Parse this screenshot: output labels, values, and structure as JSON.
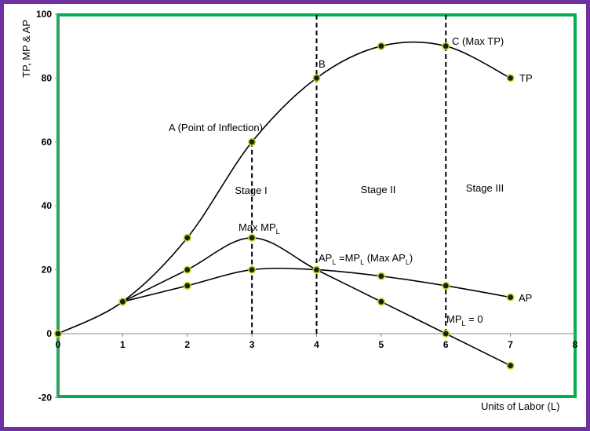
{
  "chart_data": {
    "type": "line",
    "title": "",
    "xlabel": "Units of Labor (L)",
    "ylabel": "TP, MP & AP",
    "xlim": [
      0,
      8
    ],
    "ylim": [
      -20,
      100
    ],
    "x_ticks": [
      "0",
      "1",
      "2",
      "3",
      "4",
      "5",
      "6",
      "7",
      "8"
    ],
    "y_ticks": [
      "-20",
      "0",
      "20",
      "40",
      "60",
      "80",
      "100"
    ],
    "x_tick_values": [
      0,
      1,
      2,
      3,
      4,
      5,
      6,
      7,
      8
    ],
    "y_tick_values": [
      -20,
      0,
      20,
      40,
      60,
      80,
      100
    ],
    "grid": false,
    "series": [
      {
        "name": "TP",
        "x": [
          0,
          1,
          2,
          3,
          4,
          5,
          6,
          7
        ],
        "values": [
          0,
          10,
          30,
          60,
          80,
          90,
          90,
          80
        ]
      },
      {
        "name": "AP",
        "x": [
          1,
          2,
          3,
          4,
          5,
          6,
          7
        ],
        "values": [
          10,
          15,
          20,
          20,
          18,
          15,
          11.4
        ]
      },
      {
        "name": "",
        "x": [
          1,
          2,
          3,
          4,
          5,
          6,
          7
        ],
        "values": [
          10,
          20,
          30,
          20,
          10,
          0,
          -10
        ]
      }
    ],
    "stage_boundaries": [
      3,
      4,
      6
    ],
    "stages": [
      "Stage I",
      "Stage II",
      "Stage III"
    ],
    "annotations": {
      "point_a": "A (Point of Inflection)",
      "point_b": "B",
      "point_c": "C (Max TP)",
      "max_mp": "Max MP",
      "max_mp_sub": "L",
      "ap_eq_ap": "AP",
      "ap_eq_sub1": "L",
      "ap_eq_mid": " =MP",
      "ap_eq_sub2": "L",
      "ap_eq_tail": " (Max AP",
      "ap_eq_sub3": "L",
      "ap_eq_close": ")",
      "mp_zero": "MP",
      "mp_zero_sub": "L",
      "mp_zero_tail": " = 0"
    },
    "colors": {
      "frame": "#7030a0",
      "plot_border": "#00b050",
      "line": "#000000",
      "marker_fill": "#0a2a0a",
      "marker_ring": "#c8d21e"
    }
  }
}
